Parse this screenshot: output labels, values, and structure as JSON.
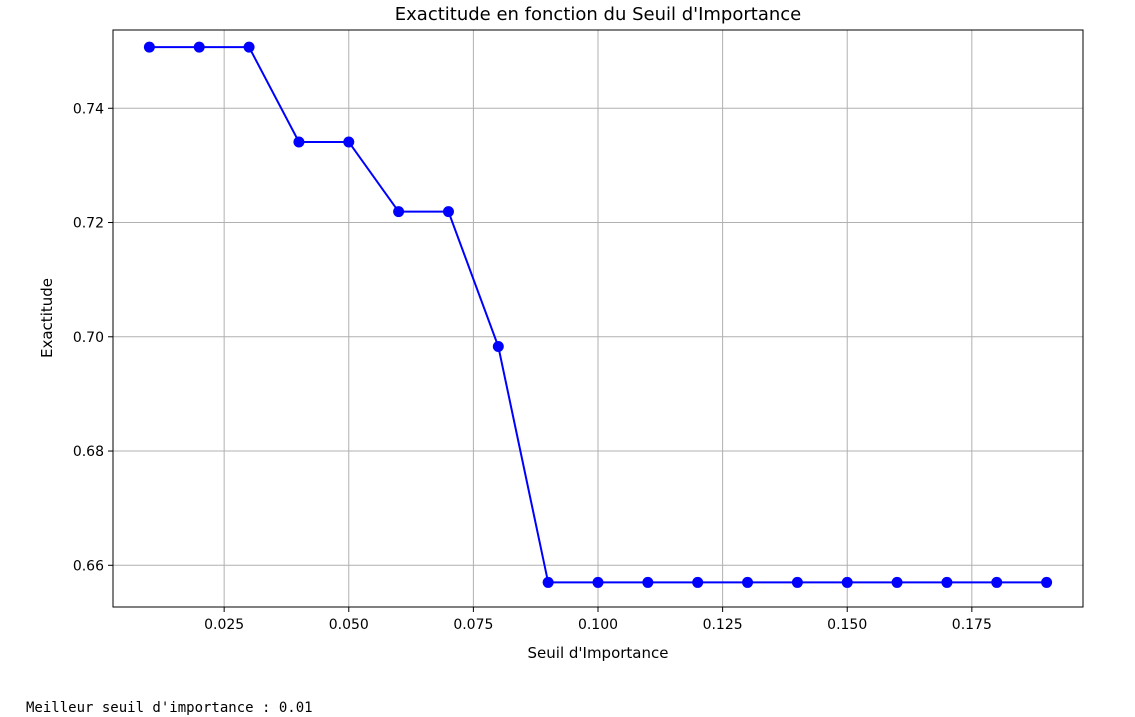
{
  "chart_data": {
    "type": "line",
    "title": "Exactitude en fonction du Seuil d'Importance",
    "xlabel": "Seuil d'Importance",
    "ylabel": "Exactitude",
    "xlim": [
      0.0027,
      0.1973
    ],
    "ylim": [
      0.6527,
      0.7537
    ],
    "x_ticks": [
      0.025,
      0.05,
      0.075,
      0.1,
      0.125,
      0.15,
      0.175
    ],
    "x_tick_labels": [
      "0.025",
      "0.050",
      "0.075",
      "0.100",
      "0.125",
      "0.150",
      "0.175"
    ],
    "y_ticks": [
      0.66,
      0.68,
      0.7,
      0.72,
      0.74
    ],
    "y_tick_labels": [
      "0.66",
      "0.68",
      "0.70",
      "0.72",
      "0.74"
    ],
    "grid": true,
    "series": [
      {
        "color": "#0000ff",
        "marker": "circle",
        "x": [
          0.01,
          0.02,
          0.03,
          0.04,
          0.05,
          0.06,
          0.07,
          0.08,
          0.09,
          0.1,
          0.11,
          0.12,
          0.13,
          0.14,
          0.15,
          0.16,
          0.17,
          0.18,
          0.19
        ],
        "y": [
          0.7507,
          0.7507,
          0.7507,
          0.7341,
          0.7341,
          0.7219,
          0.7219,
          0.6983,
          0.657,
          0.657,
          0.657,
          0.657,
          0.657,
          0.657,
          0.657,
          0.657,
          0.657,
          0.657,
          0.657
        ]
      }
    ]
  },
  "output": {
    "text": "Meilleur seuil d'importance : 0.01"
  }
}
